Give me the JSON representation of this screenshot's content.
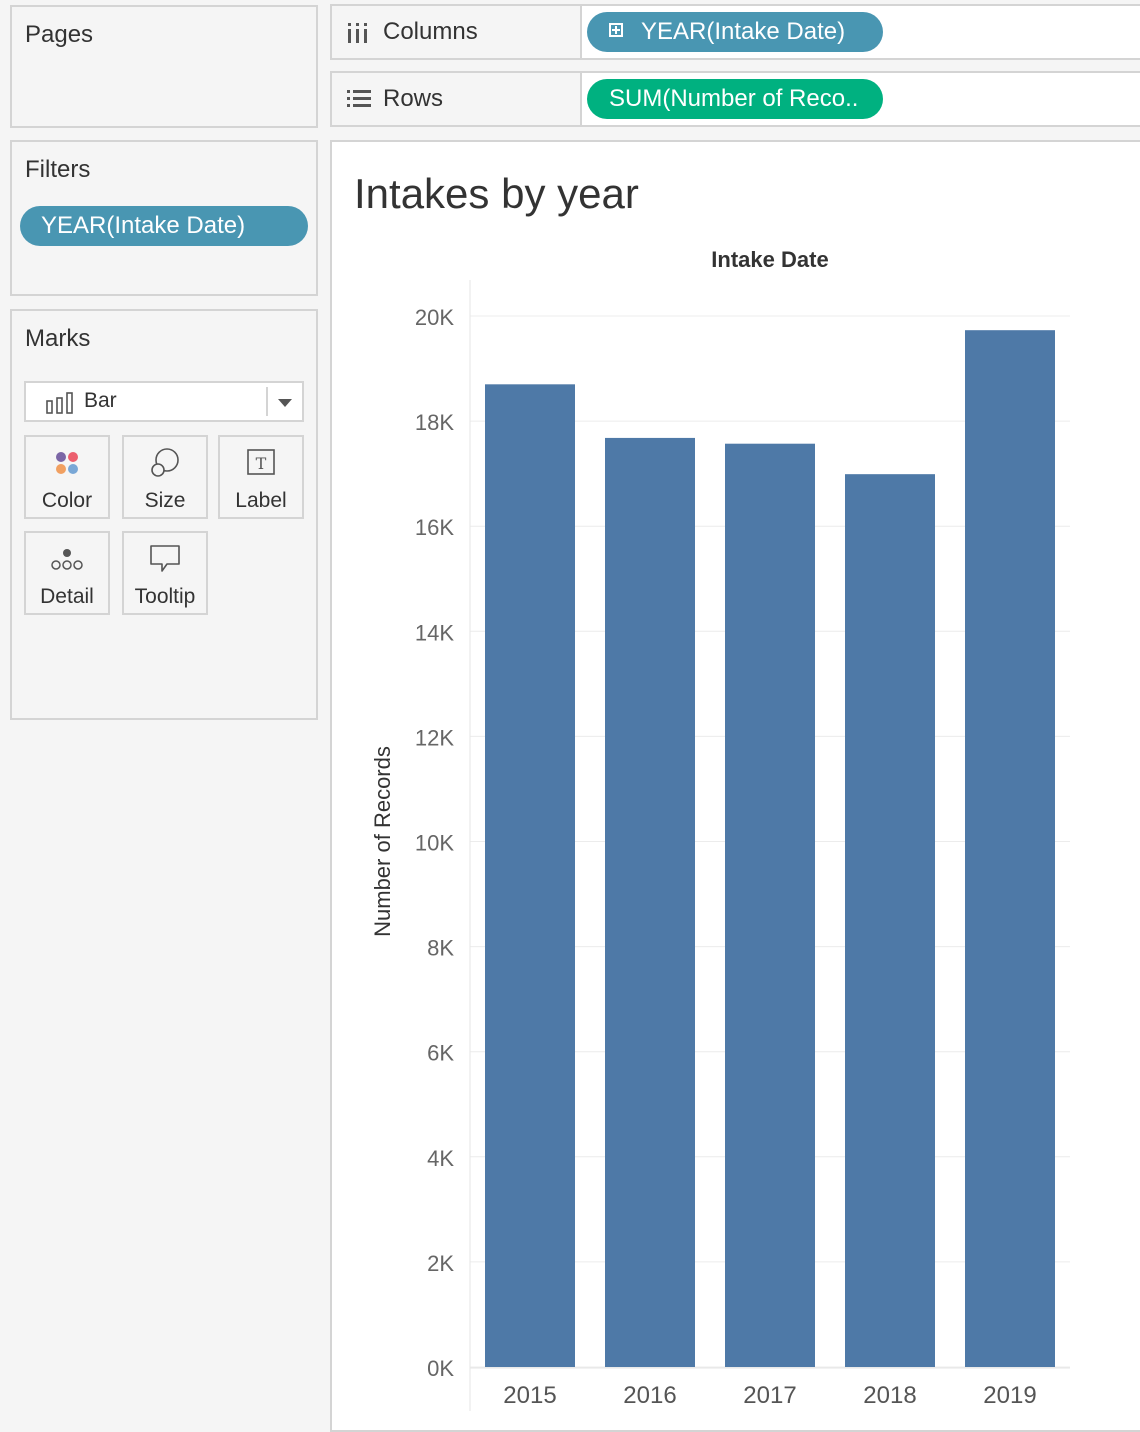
{
  "pages": {
    "title": "Pages"
  },
  "filters": {
    "title": "Filters",
    "pill": "YEAR(Intake Date)"
  },
  "marks": {
    "title": "Marks",
    "mark_type": "Bar",
    "buttons": [
      {
        "label": "Color",
        "icon": "color-dots-icon"
      },
      {
        "label": "Size",
        "icon": "size-circles-icon"
      },
      {
        "label": "Label",
        "icon": "text-label-icon"
      },
      {
        "label": "Detail",
        "icon": "detail-dots-icon"
      },
      {
        "label": "Tooltip",
        "icon": "speech-bubble-icon"
      }
    ]
  },
  "shelves": {
    "columns": {
      "label": "Columns",
      "pill": "YEAR(Intake Date)"
    },
    "rows": {
      "label": "Rows",
      "pill": "SUM(Number of Reco.."
    }
  },
  "view": {
    "title": "Intakes by year"
  },
  "colors": {
    "bar": "#4e79a7",
    "blue_pill": "#4996b2",
    "green_pill": "#00b180"
  },
  "chart_data": {
    "type": "bar",
    "title": "Intakes by year",
    "xlabel": "Intake Date",
    "ylabel": "Number of Records",
    "categories": [
      "2015",
      "2016",
      "2017",
      "2018",
      "2019"
    ],
    "values": [
      18700,
      17680,
      17570,
      16990,
      19730
    ],
    "ylim": [
      0,
      20000
    ],
    "yticks": [
      0,
      2000,
      4000,
      6000,
      8000,
      10000,
      12000,
      14000,
      16000,
      18000,
      20000
    ],
    "ytick_labels": [
      "0K",
      "2K",
      "4K",
      "6K",
      "8K",
      "10K",
      "12K",
      "14K",
      "16K",
      "18K",
      "20K"
    ],
    "grid": true,
    "legend": "none"
  }
}
